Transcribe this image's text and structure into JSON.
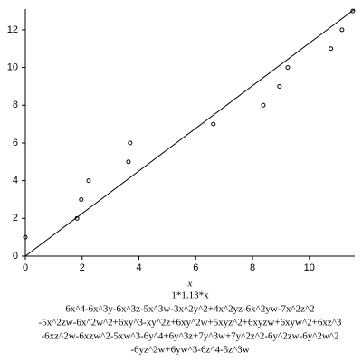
{
  "chart_data": {
    "type": "scatter",
    "x_label": "x",
    "points": {
      "color": "#000000",
      "x": [
        0,
        1.82,
        1.97,
        2.23,
        3.63,
        3.69,
        6.62,
        8.38,
        8.95,
        9.24,
        10.76,
        11.15,
        11.53
      ],
      "values": [
        1,
        2,
        3,
        4,
        5,
        6,
        7,
        8,
        9,
        10,
        11,
        12,
        13
      ]
    },
    "fit": {
      "name": "1*1.13*x",
      "color": "#000000",
      "x": [
        0,
        11.6
      ],
      "values": [
        0,
        13.1
      ]
    },
    "xlim": [
      0,
      11.6
    ],
    "ylim": [
      0,
      13.1
    ],
    "xticks": [
      0,
      2,
      4,
      6,
      8,
      10
    ],
    "yticks": [
      0,
      2,
      4,
      6,
      8,
      10,
      12
    ],
    "caption": [
      "6x^4-6x^3y-6x^3z-5x^3w-3x^2y^2+4x^2yz-6x^2yw-7x^2z^2",
      "-5x^2zw-6x^2w^2+6xy^3-xy^2z+6xy^2w+5xyz^2+6xyzw+6xyw^2+6xz^3",
      "-6xz^2w-6xzw^2-5xw^3-6y^4+6y^3z+7y^3w+7y^2z^2-6y^2zw-6y^2w^2",
      "-6yz^2w+6yw^3-6z^4-5z^3w"
    ]
  }
}
